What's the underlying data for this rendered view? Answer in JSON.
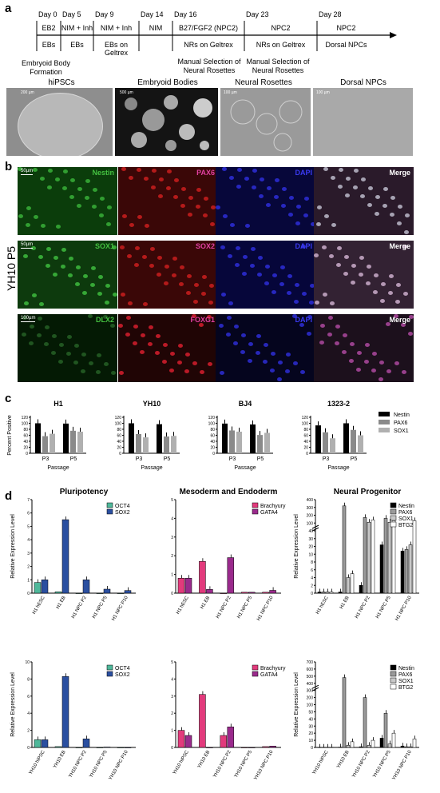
{
  "panel_labels": {
    "a": "a",
    "b": "b",
    "c": "c",
    "d": "d"
  },
  "timeline": {
    "days": [
      "Day 0",
      "Day 5",
      "Day 9",
      "Day 14",
      "Day 16",
      "Day 23",
      "Day 28"
    ],
    "media": [
      "EB2",
      "NIM + Inh",
      "NIM + Inh",
      "NIM",
      "B27/FGF2 (NPC2)",
      "NPC2",
      "NPC2"
    ],
    "stages": [
      "EBs",
      "EBs",
      "EBs on Geltrex",
      "",
      "NRs on Geltrex",
      "NRs on Geltrex",
      "Dorsal NPCs"
    ],
    "notes": [
      "Embryoid Body Formation",
      "Manual Selection of Neural Rosettes",
      "Manual Selection of Neural Rosettes"
    ]
  },
  "photos": {
    "titles": [
      "hiPSCs",
      "Embryoid Bodies",
      "Neural Rosettes",
      "Dorsal NPCs"
    ],
    "scales": [
      "200 µm",
      "500 µm",
      "100 µm",
      "100 µm"
    ]
  },
  "panel_b": {
    "row_label": "YH10 P5",
    "scale_bars": [
      "50µm",
      "50µm",
      "100µm"
    ],
    "rows": [
      [
        "Nestin",
        "PAX6",
        "DAPI",
        "Merge"
      ],
      [
        "SOX1",
        "SOX2",
        "DAPI",
        "Merge"
      ],
      [
        "DLX2",
        "FOXG1",
        "DAPI",
        "Merge"
      ]
    ],
    "colors": {
      "green": "#44c040",
      "red": "#e02a2a",
      "blue": "#3a3af0",
      "merge": "#ffffff",
      "pink": "#e040a0"
    }
  },
  "chart_data": [
    {
      "type": "bar",
      "title": "H1",
      "ylabel": "Percent Positive",
      "xlabel": "Passage",
      "categories": [
        "P3",
        "P5"
      ],
      "ylim": [
        0,
        120
      ],
      "yticks": [
        0,
        20,
        40,
        60,
        80,
        100,
        120
      ],
      "series": [
        {
          "name": "Nestin",
          "values": [
            100,
            99
          ]
        },
        {
          "name": "PAX6",
          "values": [
            57,
            75
          ]
        },
        {
          "name": "SOX1",
          "values": [
            65,
            72
          ]
        }
      ]
    },
    {
      "type": "bar",
      "title": "YH10",
      "ylabel": "",
      "xlabel": "Passage",
      "categories": [
        "P3",
        "P5"
      ],
      "ylim": [
        0,
        120
      ],
      "yticks": [
        0,
        20,
        40,
        60,
        80,
        100,
        120
      ],
      "series": [
        {
          "name": "Nestin",
          "values": [
            100,
            97
          ]
        },
        {
          "name": "PAX6",
          "values": [
            64,
            56
          ]
        },
        {
          "name": "SOX1",
          "values": [
            53,
            58
          ]
        }
      ]
    },
    {
      "type": "bar",
      "title": "BJ4",
      "ylabel": "",
      "xlabel": "Passage",
      "categories": [
        "P3",
        "P5"
      ],
      "ylim": [
        0,
        120
      ],
      "yticks": [
        0,
        20,
        40,
        60,
        80,
        100,
        120
      ],
      "series": [
        {
          "name": "Nestin",
          "values": [
            99,
            96
          ]
        },
        {
          "name": "PAX6",
          "values": [
            76,
            61
          ]
        },
        {
          "name": "SOX1",
          "values": [
            72,
            68
          ]
        }
      ]
    },
    {
      "type": "bar",
      "title": "1323-2",
      "ylabel": "",
      "xlabel": "Passage",
      "categories": [
        "P3",
        "P5"
      ],
      "ylim": [
        0,
        120
      ],
      "yticks": [
        0,
        20,
        40,
        60,
        80,
        100,
        120
      ],
      "series": [
        {
          "name": "Nestin",
          "values": [
            93,
            100
          ]
        },
        {
          "name": "PAX6",
          "values": [
            70,
            78
          ]
        },
        {
          "name": "SOX1",
          "values": [
            50,
            60
          ]
        }
      ]
    },
    {
      "type": "bar",
      "title": "Pluripotency",
      "ylabel": "Relative Expression Level",
      "categories": [
        "H1 hESC",
        "H1 EB",
        "H1 NPC P2",
        "H1 NPC P5",
        "H1 NPC P10"
      ],
      "ylim": [
        0,
        7
      ],
      "yticks": [
        0,
        1,
        2,
        3,
        4,
        5,
        6,
        7
      ],
      "series": [
        {
          "name": "OCT4",
          "values": [
            0.8,
            0.1,
            0.0,
            0.0,
            0.0
          ]
        },
        {
          "name": "SOX2",
          "values": [
            1.0,
            5.5,
            1.0,
            0.3,
            0.2
          ]
        }
      ]
    },
    {
      "type": "bar",
      "title": "Mesoderm and Endoderm",
      "ylabel": "",
      "categories": [
        "H1 hESC",
        "H1 EB",
        "H1 NPC P2",
        "H1 NPC P5",
        "H1 NPC P10"
      ],
      "ylim": [
        0,
        5
      ],
      "yticks": [
        0,
        1,
        2,
        3,
        4,
        5
      ],
      "series": [
        {
          "name": "Brachyury",
          "values": [
            0.8,
            1.7,
            0.0,
            0.05,
            0.05
          ]
        },
        {
          "name": "GATA4",
          "values": [
            0.8,
            0.2,
            1.9,
            0.05,
            0.15
          ]
        }
      ]
    },
    {
      "type": "bar",
      "title": "Neural Progenitor",
      "ylabel": "Relative Expression Level",
      "categories": [
        "H1 hESC",
        "H1 EB",
        "H1 NPC P2",
        "H1 NPC P5",
        "H1 NPC P10"
      ],
      "ylim": [
        0,
        400
      ],
      "yticks": [
        "0",
        "2",
        "4",
        "6",
        "8",
        "10",
        "20",
        "30",
        "40",
        "100",
        "200",
        "300",
        "400"
      ],
      "series": [
        {
          "name": "Nestin",
          "values": [
            0.3,
            0.3,
            2.0,
            22,
            14
          ]
        },
        {
          "name": "PAX6",
          "values": [
            0.3,
            320,
            170,
            160,
            16
          ]
        },
        {
          "name": "SOX1",
          "values": [
            0.3,
            4,
            110,
            110,
            22
          ]
        },
        {
          "name": "BTG2",
          "values": [
            0.3,
            5,
            140,
            130,
            130
          ]
        }
      ]
    },
    {
      "type": "bar",
      "title": "",
      "ylabel": "Relative Expression Level",
      "categories": [
        "YH10 hiPSC",
        "YH10 EB",
        "YH10 NPC P2",
        "YH10 NPC P5",
        "YH10 NPC P10"
      ],
      "ylim": [
        0,
        10
      ],
      "yticks": [
        0,
        2,
        4,
        6,
        8,
        10
      ],
      "series": [
        {
          "name": "OCT4",
          "values": [
            0.9,
            0.1,
            0.0,
            0.0,
            0.0
          ]
        },
        {
          "name": "SOX2",
          "values": [
            0.9,
            8.3,
            1.0,
            0.05,
            0.0
          ]
        }
      ]
    },
    {
      "type": "bar",
      "title": "",
      "ylabel": "",
      "categories": [
        "YH10 hiPSC",
        "YH10 EB",
        "YH10 NPC P2",
        "YH10 NPC P5",
        "YH10 NPC P10"
      ],
      "ylim": [
        0,
        5
      ],
      "yticks": [
        0,
        1,
        2,
        3,
        4,
        5
      ],
      "series": [
        {
          "name": "Brachyury",
          "values": [
            1.0,
            3.1,
            0.7,
            0.0,
            0.05
          ]
        },
        {
          "name": "GATA4",
          "values": [
            0.7,
            0.0,
            1.2,
            0.0,
            0.08
          ]
        }
      ]
    },
    {
      "type": "bar",
      "title": "",
      "ylabel": "Relative Expression Level",
      "categories": [
        "YH10 hiPSC",
        "YH10 EB",
        "YH10 NPC P2",
        "YH10 NPC P5",
        "YH10 NPC P10"
      ],
      "ylim": [
        0,
        700
      ],
      "yticks": [
        "0",
        "10",
        "20",
        "30",
        "40",
        "50",
        "100",
        "200",
        "300",
        "400",
        "500",
        "600",
        "700"
      ],
      "series": [
        {
          "name": "Nestin",
          "values": [
            0.3,
            0.5,
            1,
            13,
            2
          ]
        },
        {
          "name": "PAX6",
          "values": [
            0.3,
            480,
            200,
            48,
            1
          ]
        },
        {
          "name": "SOX1",
          "values": [
            0.3,
            3,
            3,
            5,
            1
          ]
        },
        {
          "name": "BTG2",
          "values": [
            0.3,
            8,
            10,
            20,
            12
          ]
        }
      ]
    }
  ],
  "legends": {
    "c": [
      "Nestin",
      "PAX6",
      "SOX1"
    ],
    "pluri": [
      "OCT4",
      "SOX2"
    ],
    "meso": [
      "Brachyury",
      "GATA4"
    ],
    "neural": [
      "Nestin",
      "PAX6",
      "SOX1",
      "BTG2"
    ]
  },
  "series_colors": {
    "Nestin": "#000000",
    "PAX6": "#9a9a9a",
    "SOX1": "#c8c8c8",
    "BTG2": "#ffffff",
    "OCT4": "#4fb89a",
    "SOX2": "#2a4fa0",
    "Brachyury": "#e23a7c",
    "GATA4": "#9a2a8c",
    "c_Nestin": "#000000",
    "c_PAX6": "#8a8a8a",
    "c_SOX1": "#b0b0b0"
  }
}
